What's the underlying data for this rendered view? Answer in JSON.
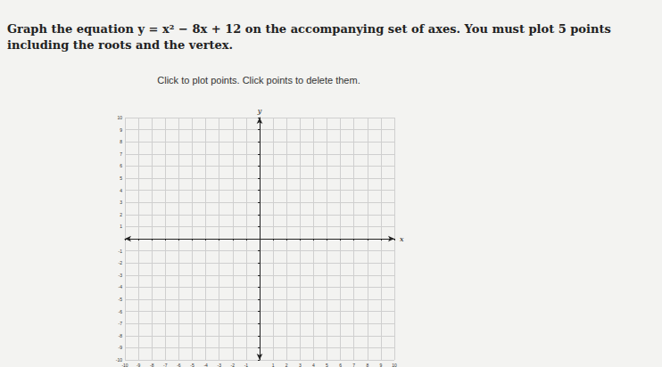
{
  "question": "Graph the equation y = x² − 8x + 12 on the accompanying set of axes. You must plot 5 points including the roots and the vertex.",
  "instruction": "Click to plot points. Click points to delete them.",
  "chart_data": {
    "type": "scatter",
    "x_label": "x",
    "y_label": "y",
    "x": [],
    "values": [],
    "xlim": [
      -10,
      10
    ],
    "ylim": [
      -10,
      10
    ],
    "xticks": [
      -10,
      -9,
      -8,
      -7,
      -6,
      -5,
      -4,
      -3,
      -2,
      -1,
      1,
      2,
      3,
      4,
      5,
      6,
      7,
      8,
      9,
      10
    ],
    "yticks": [
      -10,
      -9,
      -8,
      -7,
      -6,
      -5,
      -4,
      -3,
      -2,
      -1,
      1,
      2,
      3,
      4,
      5,
      6,
      7,
      8,
      9,
      10
    ],
    "grid": true
  }
}
